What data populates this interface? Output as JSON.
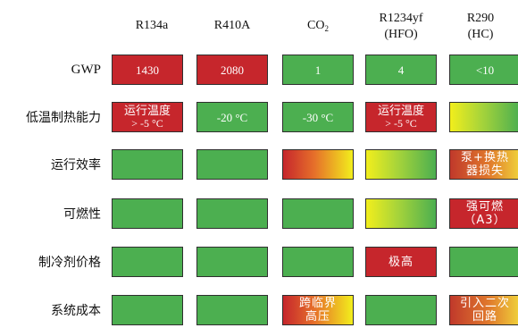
{
  "columns": [
    {
      "id": "r134a",
      "line1": "R134a",
      "line2": ""
    },
    {
      "id": "r410a",
      "line1": "R410A",
      "line2": ""
    },
    {
      "id": "co2",
      "line1": "CO",
      "sub": "2",
      "line2": ""
    },
    {
      "id": "r1234yf",
      "line1": "R1234yf",
      "line2": "(HFO)"
    },
    {
      "id": "r290",
      "line1": "R290",
      "line2": "(HC)"
    }
  ],
  "rows": [
    {
      "id": "gwp",
      "label": "GWP"
    },
    {
      "id": "low-temp-heating",
      "label": "低温制热能力"
    },
    {
      "id": "efficiency",
      "label": "运行效率"
    },
    {
      "id": "flammability",
      "label": "可燃性"
    },
    {
      "id": "price",
      "label": "制冷剂价格"
    },
    {
      "id": "system-cost",
      "label": "系统成本"
    }
  ],
  "cells": {
    "gwp": [
      {
        "color": "red",
        "text": "1430"
      },
      {
        "color": "red",
        "text": "2080"
      },
      {
        "color": "green",
        "text": "1"
      },
      {
        "color": "green",
        "text": "4"
      },
      {
        "color": "green",
        "text": "<10"
      }
    ],
    "low-temp-heating": [
      {
        "color": "red",
        "line1": "运行温度",
        "line2": "> -5 °C"
      },
      {
        "color": "green",
        "text": "-20 °C"
      },
      {
        "color": "green",
        "text": "-30 °C"
      },
      {
        "color": "red",
        "line1": "运行温度",
        "line2": "> -5 °C"
      },
      {
        "color": "yellow-green",
        "text": ""
      }
    ],
    "efficiency": [
      {
        "color": "green",
        "text": ""
      },
      {
        "color": "green",
        "text": ""
      },
      {
        "color": "red-yellow",
        "text": ""
      },
      {
        "color": "yellow-green",
        "text": ""
      },
      {
        "color": "dark-orange",
        "line1": "泵+换热",
        "line2": "器损失"
      }
    ],
    "flammability": [
      {
        "color": "green",
        "text": ""
      },
      {
        "color": "green",
        "text": ""
      },
      {
        "color": "green",
        "text": ""
      },
      {
        "color": "yellow-green",
        "text": ""
      },
      {
        "color": "red",
        "line1": "强可燃",
        "line2": "（A3）"
      }
    ],
    "price": [
      {
        "color": "green",
        "text": ""
      },
      {
        "color": "green",
        "text": ""
      },
      {
        "color": "green",
        "text": ""
      },
      {
        "color": "red",
        "text": "极高"
      },
      {
        "color": "green",
        "text": ""
      }
    ],
    "system-cost": [
      {
        "color": "green",
        "text": ""
      },
      {
        "color": "green",
        "text": ""
      },
      {
        "color": "red-yellow",
        "line1": "跨临界",
        "line2": "高压"
      },
      {
        "color": "green",
        "text": ""
      },
      {
        "color": "dark-orange",
        "line1": "引入二次",
        "line2": "回路"
      }
    ]
  },
  "colors": {
    "green": "#4caf50",
    "red": "#c6262c",
    "yellow": "#f2ee1c",
    "border": "#2f2f2f"
  }
}
